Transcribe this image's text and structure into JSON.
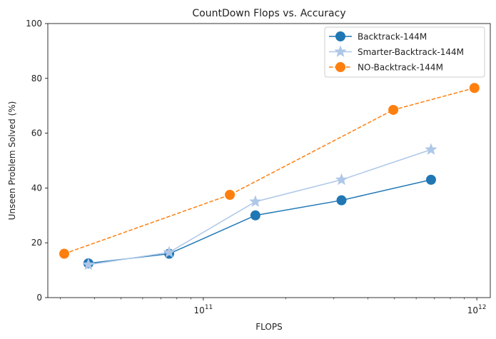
{
  "chart_data": {
    "type": "line",
    "title": "CountDown Flops vs. Accuracy",
    "xlabel": "FLOPS",
    "ylabel": "Unseen Problem Solved (%)",
    "x_scale": "log",
    "xlim": [
      27000000000.0,
      1120000000000.0
    ],
    "ylim": [
      0,
      100
    ],
    "yticks": [
      0,
      20,
      40,
      60,
      80,
      100
    ],
    "ytick_labels": [
      "0",
      "20",
      "40",
      "60",
      "80",
      "100"
    ],
    "xticks_major": [
      100000000000.0,
      1000000000000.0
    ],
    "xtick_labels": [
      {
        "base": "10",
        "exp": "11"
      },
      {
        "base": "10",
        "exp": "12"
      }
    ],
    "xticks_minor": [
      30000000000.0,
      40000000000.0,
      50000000000.0,
      60000000000.0,
      70000000000.0,
      80000000000.0,
      90000000000.0,
      200000000000.0,
      300000000000.0,
      400000000000.0,
      500000000000.0,
      600000000000.0,
      700000000000.0,
      800000000000.0,
      900000000000.0
    ],
    "grid": false,
    "legend": {
      "position": "top-right"
    },
    "series": [
      {
        "name": "Backtrack-144M",
        "color": "#1f77b4",
        "marker": "circle",
        "line": "solid",
        "x": [
          38000000000.0,
          75000000000.0,
          155000000000.0,
          320000000000.0,
          680000000000.0
        ],
        "y": [
          12.5,
          16,
          30,
          35.5,
          43
        ]
      },
      {
        "name": "Smarter-Backtrack-144M",
        "color": "#aec7e8",
        "marker": "star",
        "line": "solid",
        "x": [
          38000000000.0,
          75000000000.0,
          155000000000.0,
          320000000000.0,
          680000000000.0
        ],
        "y": [
          12,
          16.5,
          35,
          43,
          54
        ]
      },
      {
        "name": "NO-Backtrack-144M",
        "color": "#ff7f0e",
        "marker": "circle",
        "line": "dashed",
        "x": [
          31000000000.0,
          125000000000.0,
          495000000000.0,
          980000000000.0
        ],
        "y": [
          16,
          37.5,
          68.5,
          76.5
        ]
      }
    ]
  }
}
